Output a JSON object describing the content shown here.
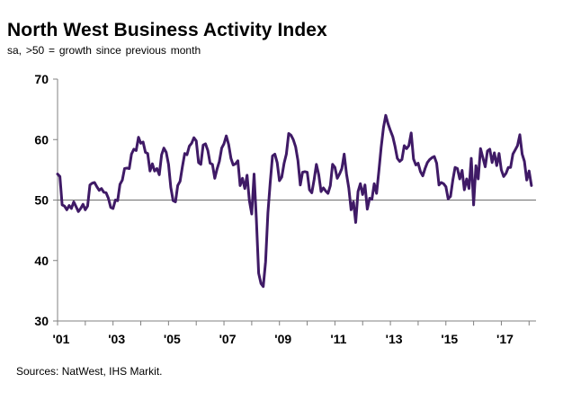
{
  "chart_data": {
    "type": "line",
    "title": "North West Business Activity Index",
    "subtitle": "sa, >50 = growth  since previous  month",
    "xlabel": "",
    "ylabel": "",
    "ylim": [
      30,
      70
    ],
    "y_ticks": [
      "30",
      "40",
      "50",
      "60",
      "70"
    ],
    "x_ticks": [
      {
        "label": "'01",
        "year": 2001
      },
      {
        "label": "'03",
        "year": 2003
      },
      {
        "label": "'05",
        "year": 2005
      },
      {
        "label": "'07",
        "year": 2007
      },
      {
        "label": "'09",
        "year": 2009
      },
      {
        "label": "'11",
        "year": 2011
      },
      {
        "label": "'13",
        "year": 2013
      },
      {
        "label": "'15",
        "year": 2015
      },
      {
        "label": "'17",
        "year": 2017
      }
    ],
    "reference_line": 50,
    "grid": false,
    "line_color": "#3f1a66",
    "series": [
      {
        "name": "",
        "x_start": "2001-01",
        "values": [
          54.3,
          53.9,
          49.2,
          49.0,
          48.4,
          49.1,
          48.6,
          49.7,
          48.9,
          48.1,
          48.6,
          49.3,
          48.4,
          49.0,
          52.5,
          52.8,
          52.9,
          52.2,
          51.6,
          51.9,
          51.3,
          51.2,
          50.3,
          48.8,
          48.6,
          50.0,
          49.9,
          52.6,
          53.3,
          55.2,
          55.3,
          55.2,
          57.6,
          58.4,
          58.2,
          60.4,
          59.4,
          59.6,
          57.9,
          57.7,
          54.8,
          56.0,
          54.8,
          55.2,
          54.2,
          57.5,
          58.6,
          57.9,
          55.9,
          52.1,
          49.9,
          49.7,
          52.4,
          53.1,
          55.5,
          57.7,
          57.5,
          58.9,
          59.4,
          60.3,
          59.8,
          56.2,
          55.9,
          59.1,
          59.3,
          58.2,
          56.1,
          55.9,
          53.6,
          55.1,
          56.4,
          58.6,
          59.3,
          60.6,
          59.2,
          56.9,
          55.8,
          56.0,
          56.5,
          52.4,
          53.6,
          51.9,
          54.1,
          49.9,
          47.7,
          54.3,
          47.0,
          37.9,
          36.2,
          35.7,
          39.8,
          47.9,
          52.8,
          57.3,
          57.6,
          56.2,
          53.2,
          53.8,
          56.1,
          57.6,
          61.0,
          60.7,
          60.0,
          58.8,
          56.5,
          52.5,
          54.6,
          54.7,
          54.6,
          51.7,
          51.2,
          53.4,
          55.9,
          54.2,
          51.4,
          52.0,
          51.5,
          51.1,
          52.4,
          55.9,
          55.4,
          53.6,
          54.3,
          55.2,
          57.6,
          54.3,
          52.0,
          48.4,
          49.7,
          46.3,
          51.4,
          52.7,
          50.9,
          52.5,
          48.5,
          50.3,
          50.1,
          52.7,
          51.1,
          54.7,
          58.7,
          62.0,
          64.0,
          62.6,
          61.5,
          60.5,
          58.9,
          56.9,
          56.4,
          56.7,
          59.0,
          58.5,
          59.0,
          61.1,
          56.8,
          55.8,
          56.1,
          54.7,
          54.0,
          55.2,
          56.2,
          56.7,
          57.0,
          57.2,
          56.1,
          52.5,
          52.9,
          52.7,
          52.2,
          50.2,
          50.6,
          53.3,
          55.4,
          55.2,
          53.5,
          54.9,
          51.7,
          53.5,
          51.9,
          56.9,
          49.2,
          55.7,
          53.5,
          58.5,
          57.0,
          55.5,
          58.1,
          58.4,
          56.2,
          57.8,
          55.7,
          57.7,
          55.0,
          53.9,
          54.4,
          55.4,
          55.4,
          57.6,
          58.3,
          59.0,
          60.8,
          57.6,
          56.4,
          53.3,
          54.8,
          52.4
        ]
      }
    ]
  },
  "footer": {
    "source": "Sources: NatWest, IHS Markit."
  }
}
